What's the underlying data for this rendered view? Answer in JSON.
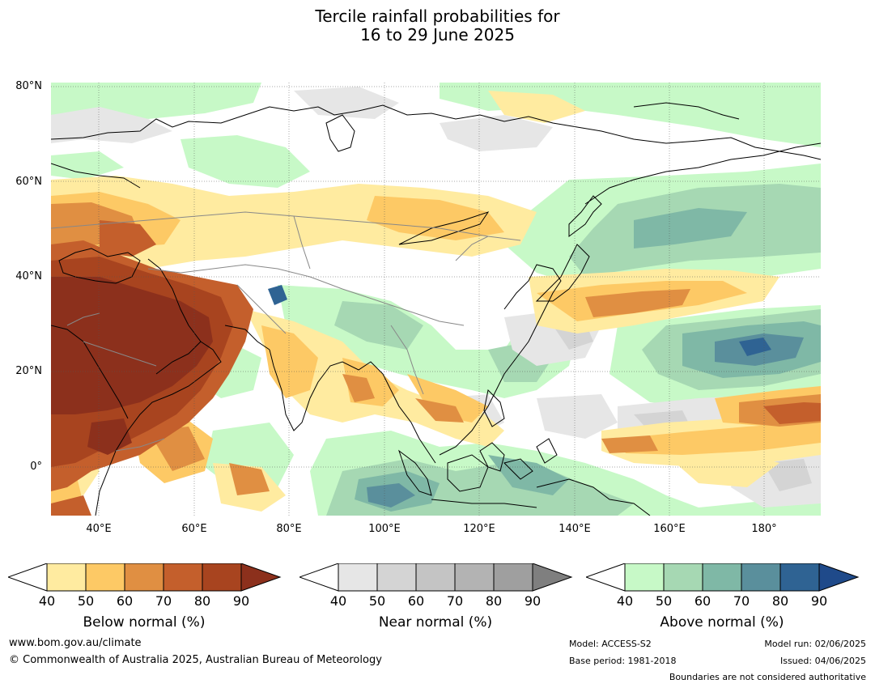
{
  "title_line1": "Tercile rainfall probabilities for",
  "title_line2": "16 to 29 June 2025",
  "map": {
    "lat_labels": [
      "80°N",
      "60°N",
      "40°N",
      "20°N",
      "0°"
    ],
    "lon_labels": [
      "40°E",
      "60°E",
      "80°E",
      "100°E",
      "120°E",
      "140°E",
      "160°E",
      "180°"
    ],
    "extent": {
      "lon_min": 30,
      "lon_max": 192,
      "lat_min": -10,
      "lat_max": 81
    }
  },
  "colorbars": [
    {
      "label": "Below normal (%)",
      "ticks": [
        "40",
        "50",
        "60",
        "70",
        "80",
        "90"
      ],
      "colors": [
        "#ffffff",
        "#ffeba0",
        "#fdc965",
        "#e08f42",
        "#c45f2c",
        "#a8441f",
        "#8c301c"
      ]
    },
    {
      "label": "Near normal (%)",
      "ticks": [
        "40",
        "50",
        "60",
        "70",
        "80",
        "90"
      ],
      "colors": [
        "#ffffff",
        "#e6e6e6",
        "#d4d4d4",
        "#c4c4c4",
        "#b3b3b3",
        "#9f9f9f",
        "#7f7f7f"
      ]
    },
    {
      "label": "Above normal (%)",
      "ticks": [
        "40",
        "50",
        "60",
        "70",
        "80",
        "90"
      ],
      "colors": [
        "#ffffff",
        "#c7f9c7",
        "#a6d8b3",
        "#7fb8a6",
        "#5a8f9c",
        "#2f6393",
        "#1f4a8a"
      ]
    }
  ],
  "footer": {
    "website": "www.bom.gov.au/climate",
    "copyright": "© Commonwealth of Australia 2025, Australian Bureau of Meteorology",
    "model": "Model: ACCESS-S2",
    "base_period": "Base period: 1981-2018",
    "model_run": "Model run: 02/06/2025",
    "issued": "Issued: 04/06/2025",
    "disclaimer": "Boundaries are not considered authoritative"
  }
}
